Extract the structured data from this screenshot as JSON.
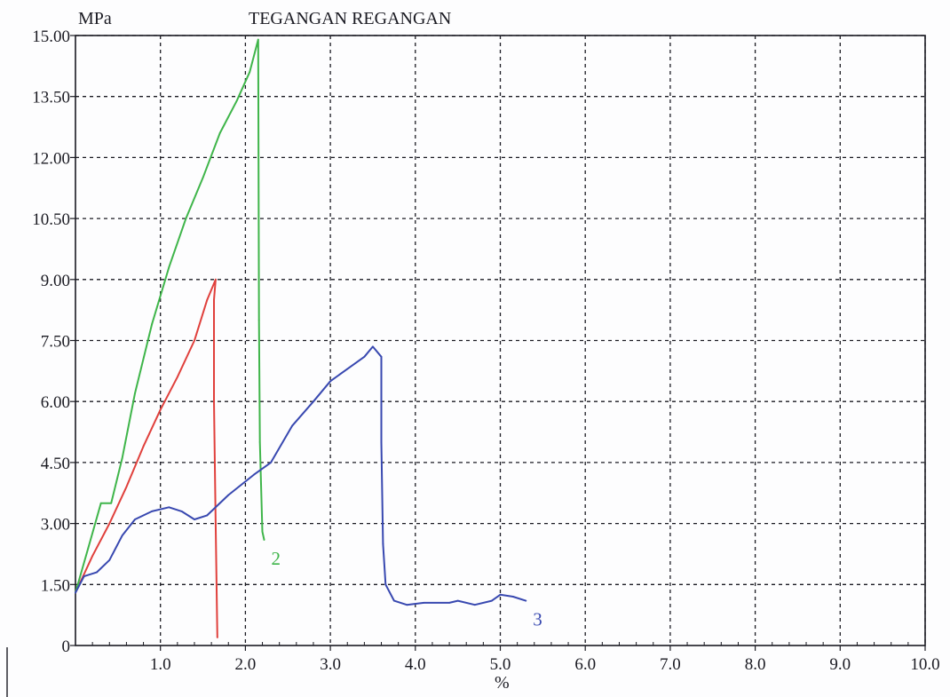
{
  "chart_data": {
    "type": "line",
    "title": "TEGANGAN REGANGAN",
    "ylabel": "MPa",
    "xlabel": "%",
    "xlim": [
      0,
      10
    ],
    "ylim": [
      0,
      15
    ],
    "grid": true,
    "x_ticks": [
      "1.0",
      "2.0",
      "3.0",
      "4.0",
      "5.0",
      "6.0",
      "7.0",
      "8.0",
      "9.0",
      "10.0"
    ],
    "y_ticks": [
      "0",
      "1.50",
      "3.00",
      "4.50",
      "6.00",
      "7.50",
      "9.00",
      "10.50",
      "12.00",
      "13.50",
      "15.00"
    ],
    "series": [
      {
        "name": "",
        "color": "#e0403c",
        "points": [
          [
            0,
            1.3
          ],
          [
            0.2,
            2.2
          ],
          [
            0.4,
            3.0
          ],
          [
            0.6,
            3.9
          ],
          [
            0.8,
            4.9
          ],
          [
            1.0,
            5.8
          ],
          [
            1.2,
            6.6
          ],
          [
            1.4,
            7.5
          ],
          [
            1.55,
            8.5
          ],
          [
            1.65,
            9.0
          ],
          [
            1.63,
            8.5
          ],
          [
            1.63,
            6.0
          ],
          [
            1.65,
            3.0
          ],
          [
            1.67,
            0.2
          ]
        ]
      },
      {
        "name": "2",
        "color": "#3fb54a",
        "points": [
          [
            0,
            1.3
          ],
          [
            0.15,
            2.4
          ],
          [
            0.3,
            3.5
          ],
          [
            0.42,
            3.5
          ],
          [
            0.55,
            4.6
          ],
          [
            0.7,
            6.2
          ],
          [
            0.9,
            7.9
          ],
          [
            1.1,
            9.3
          ],
          [
            1.3,
            10.5
          ],
          [
            1.5,
            11.5
          ],
          [
            1.7,
            12.6
          ],
          [
            1.9,
            13.4
          ],
          [
            2.05,
            14.1
          ],
          [
            2.15,
            14.9
          ],
          [
            2.16,
            8.0
          ],
          [
            2.17,
            5.0
          ],
          [
            2.2,
            2.8
          ],
          [
            2.22,
            2.6
          ]
        ]
      },
      {
        "name": "3",
        "color": "#3848b0",
        "points": [
          [
            0,
            1.3
          ],
          [
            0.1,
            1.7
          ],
          [
            0.25,
            1.8
          ],
          [
            0.4,
            2.1
          ],
          [
            0.55,
            2.7
          ],
          [
            0.7,
            3.1
          ],
          [
            0.9,
            3.3
          ],
          [
            1.1,
            3.4
          ],
          [
            1.25,
            3.3
          ],
          [
            1.4,
            3.1
          ],
          [
            1.55,
            3.2
          ],
          [
            1.8,
            3.7
          ],
          [
            2.1,
            4.2
          ],
          [
            2.3,
            4.5
          ],
          [
            2.55,
            5.4
          ],
          [
            2.8,
            6.0
          ],
          [
            3.0,
            6.5
          ],
          [
            3.2,
            6.8
          ],
          [
            3.4,
            7.1
          ],
          [
            3.5,
            7.35
          ],
          [
            3.6,
            7.1
          ],
          [
            3.6,
            5.0
          ],
          [
            3.62,
            2.5
          ],
          [
            3.65,
            1.5
          ],
          [
            3.75,
            1.1
          ],
          [
            3.9,
            1.0
          ],
          [
            4.1,
            1.05
          ],
          [
            4.4,
            1.05
          ],
          [
            4.5,
            1.1
          ],
          [
            4.7,
            1.0
          ],
          [
            4.9,
            1.1
          ],
          [
            5.0,
            1.25
          ],
          [
            5.15,
            1.2
          ],
          [
            5.3,
            1.1
          ]
        ]
      }
    ]
  }
}
